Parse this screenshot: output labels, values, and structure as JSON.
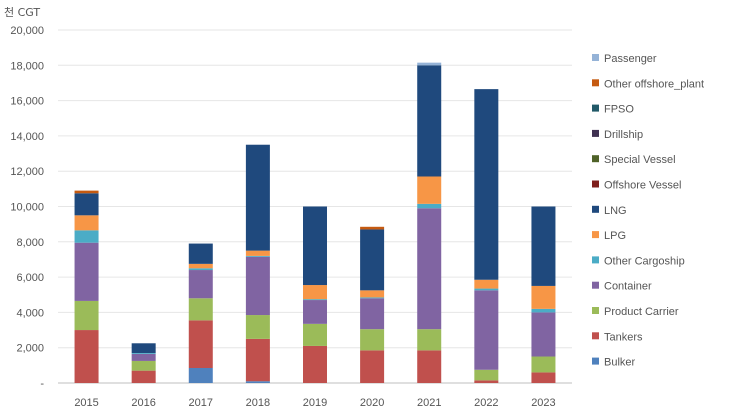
{
  "chart_data": {
    "type": "bar",
    "stacked": true,
    "title": "",
    "unit_label": "천 CGT",
    "xlabel": "",
    "ylabel": "",
    "ylim": [
      0,
      20000
    ],
    "ytick_step": 2000,
    "ytick_labels": [
      "-",
      "2,000",
      "4,000",
      "6,000",
      "8,000",
      "10,000",
      "12,000",
      "14,000",
      "16,000",
      "18,000",
      "20,000"
    ],
    "categories": [
      "2015",
      "2016",
      "2017",
      "2018",
      "2019",
      "2020",
      "2021",
      "2022",
      "2023"
    ],
    "legend_position": "right",
    "series": [
      {
        "name": "Bulker",
        "color": "#4f81bd",
        "values": [
          0,
          0,
          850,
          100,
          0,
          0,
          0,
          0,
          0
        ]
      },
      {
        "name": "Tankers",
        "color": "#c0504d",
        "values": [
          3000,
          700,
          2700,
          2400,
          2100,
          1850,
          1850,
          150,
          600
        ]
      },
      {
        "name": "Product Carrier",
        "color": "#9bbb59",
        "values": [
          1650,
          550,
          1250,
          1350,
          1250,
          1200,
          1200,
          600,
          900
        ]
      },
      {
        "name": "Container",
        "color": "#8064a2",
        "values": [
          3300,
          400,
          1600,
          3300,
          1350,
          1750,
          6850,
          4500,
          2500
        ]
      },
      {
        "name": "Other Cargoship",
        "color": "#4bacc6",
        "values": [
          700,
          50,
          100,
          50,
          50,
          50,
          250,
          100,
          200
        ]
      },
      {
        "name": "LPG",
        "color": "#f79646",
        "values": [
          850,
          0,
          250,
          300,
          800,
          400,
          1550,
          500,
          1300
        ]
      },
      {
        "name": "LNG",
        "color": "#1f497d",
        "values": [
          1250,
          550,
          1150,
          6000,
          4450,
          3450,
          6300,
          10800,
          4500
        ]
      },
      {
        "name": "Offshore Vessel",
        "color": "#7f1f1c",
        "values": [
          0,
          0,
          0,
          0,
          0,
          0,
          0,
          0,
          0
        ]
      },
      {
        "name": "Special Vessel",
        "color": "#4f6228",
        "values": [
          0,
          0,
          0,
          0,
          0,
          0,
          0,
          0,
          0
        ]
      },
      {
        "name": "Drillship",
        "color": "#3f3151",
        "values": [
          0,
          0,
          0,
          0,
          0,
          0,
          0,
          0,
          0
        ]
      },
      {
        "name": "FPSO",
        "color": "#215968",
        "values": [
          0,
          0,
          0,
          0,
          0,
          0,
          0,
          0,
          0
        ]
      },
      {
        "name": "Other offshore_plant",
        "color": "#c55a11",
        "values": [
          150,
          0,
          0,
          0,
          0,
          150,
          0,
          0,
          0
        ]
      },
      {
        "name": "Passenger",
        "color": "#95b3d7",
        "values": [
          0,
          0,
          0,
          0,
          0,
          0,
          150,
          0,
          0
        ]
      }
    ]
  }
}
